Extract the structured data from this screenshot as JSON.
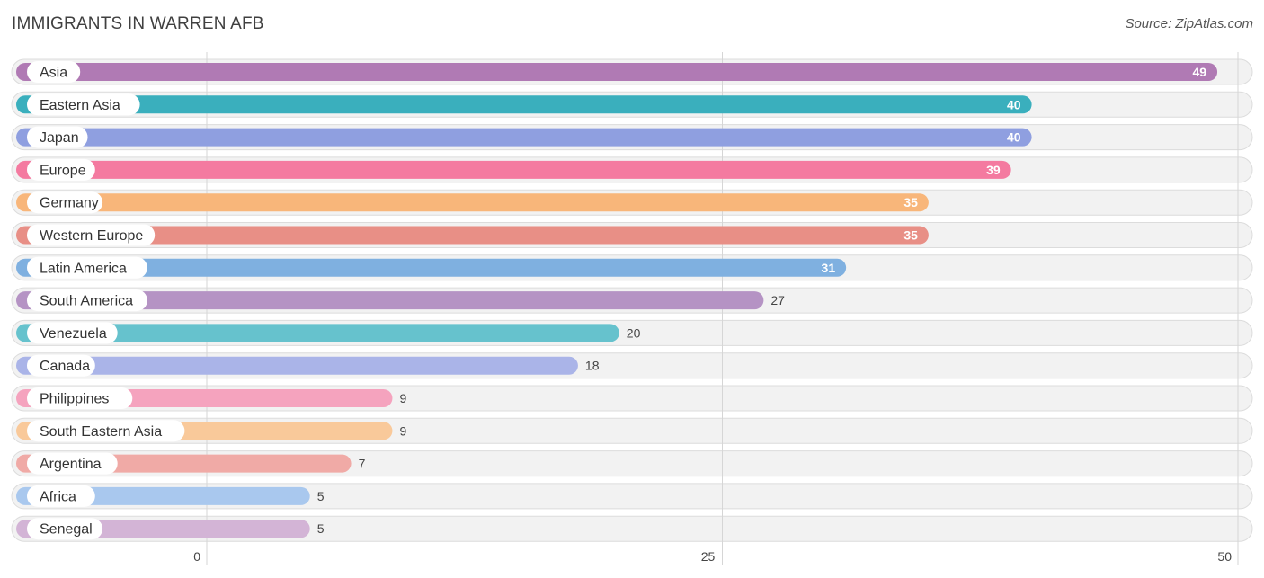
{
  "chart_data": {
    "type": "bar",
    "orientation": "horizontal",
    "title": "IMMIGRANTS IN WARREN AFB",
    "source": "Source: ZipAtlas.com",
    "xlim": [
      0,
      50
    ],
    "xticks": [
      0,
      25,
      50
    ],
    "grid": true,
    "categories": [
      "Asia",
      "Eastern Asia",
      "Japan",
      "Europe",
      "Germany",
      "Western Europe",
      "Latin America",
      "South America",
      "Venezuela",
      "Canada",
      "Philippines",
      "South Eastern Asia",
      "Argentina",
      "Africa",
      "Senegal"
    ],
    "values": [
      49,
      40,
      40,
      39,
      35,
      35,
      31,
      27,
      20,
      18,
      9,
      9,
      7,
      5,
      5
    ],
    "colors": [
      "#b07ab4",
      "#3aafbd",
      "#8f9fe0",
      "#f47aa0",
      "#f8b67a",
      "#e88f86",
      "#7fb0e0",
      "#b593c4",
      "#66c2cd",
      "#aab4e8",
      "#f5a3be",
      "#f9c99a",
      "#f0aaa6",
      "#a9c8ee",
      "#d3b4d6"
    ]
  }
}
